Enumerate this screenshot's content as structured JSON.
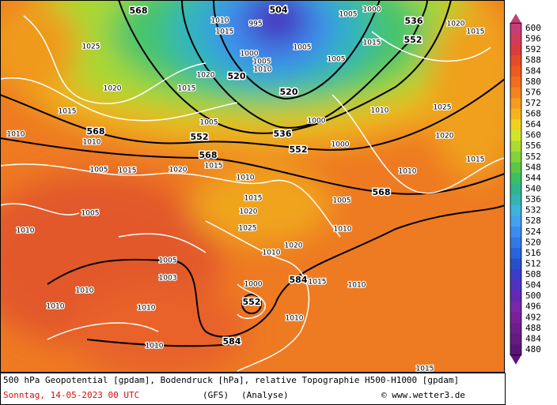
{
  "map": {
    "geopotential_labels": [
      568,
      504,
      536,
      552,
      520,
      520,
      536,
      552,
      552,
      568,
      568,
      568,
      584,
      552,
      584
    ],
    "pressure_labels": [
      995,
      1000,
      1005,
      1005,
      1005,
      1000,
      1010,
      1010,
      1015,
      1020,
      1015,
      1025,
      1020,
      1015,
      1010,
      1010,
      1005,
      1000,
      1000,
      1010,
      1025,
      1020,
      1015,
      1010,
      1005,
      1010,
      1015,
      1020,
      1025,
      1020,
      1010,
      1000,
      1015,
      1010,
      1010,
      1010,
      1010,
      1005,
      1003,
      1010,
      1010,
      1015,
      1010,
      1005,
      1015,
      1020,
      1015,
      1005,
      1010,
      1015,
      1005,
      1015,
      1020
    ]
  },
  "colorbar": {
    "levels": [
      600,
      596,
      592,
      588,
      584,
      580,
      576,
      572,
      568,
      564,
      560,
      556,
      552,
      548,
      544,
      540,
      536,
      532,
      528,
      524,
      520,
      516,
      512,
      508,
      504,
      500,
      496,
      492,
      488,
      484,
      480
    ],
    "colors": [
      "#c83c78",
      "#d23c5a",
      "#dc3c3c",
      "#e64b28",
      "#ec5a1e",
      "#f06e1e",
      "#f5821e",
      "#f59b1e",
      "#f5b41e",
      "#f0d21e",
      "#d2e628",
      "#aadc32",
      "#82d23c",
      "#5ac846",
      "#3cbe64",
      "#32b48c",
      "#32b4b4",
      "#3cb4dc",
      "#46a0f0",
      "#3c8cf0",
      "#3278e6",
      "#2864dc",
      "#2850c8",
      "#3c3cc8",
      "#5032be",
      "#6428b4",
      "#7828aa",
      "#7a2096",
      "#6e1e8c",
      "#641a82",
      "#5a1478"
    ]
  },
  "footer": {
    "description": "500 hPa Geopotential [gpdam], Bodendruck [hPa], relative Topographie H500-H1000 [gpdam]",
    "date": "Sonntag, 14-05-2023  00 UTC",
    "model": "(GFS)",
    "run": "(Analyse)",
    "credit": "© www.wetter3.de"
  }
}
